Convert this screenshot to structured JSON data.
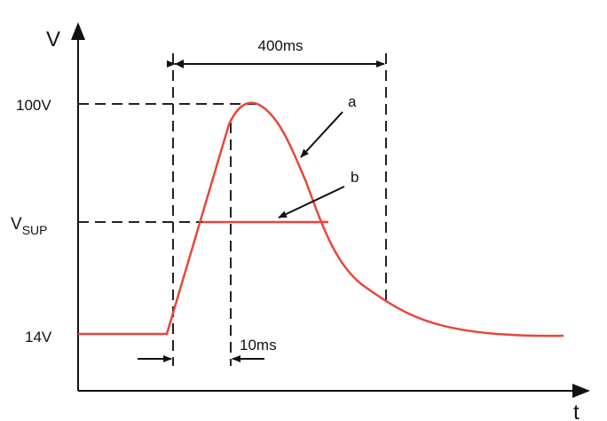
{
  "axes": {
    "y_label": "V",
    "x_label": "t"
  },
  "levels": {
    "high": "100V",
    "supply": {
      "main": "V",
      "sub": "SUP"
    },
    "base": "14V"
  },
  "durations": {
    "pulse": "400ms",
    "rise": "10ms"
  },
  "curves": {
    "a": "a",
    "b": "b"
  }
}
